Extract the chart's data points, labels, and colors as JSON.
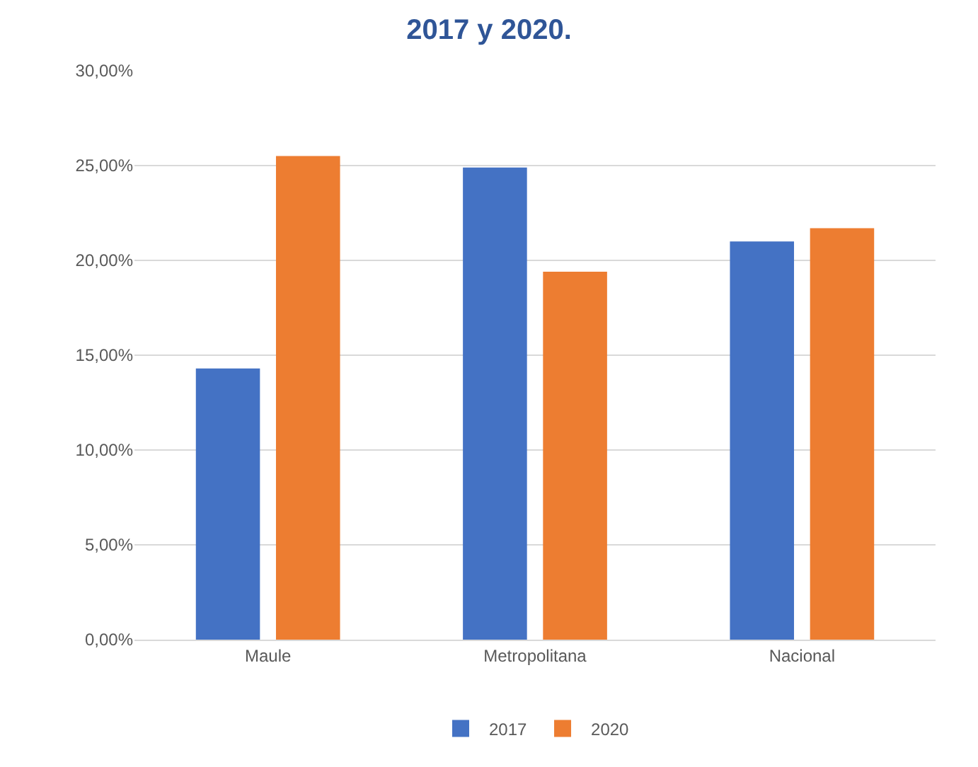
{
  "chart_data": {
    "type": "bar",
    "title": "2017 y 2020.",
    "categories": [
      "Maule",
      "Metropolitana",
      "Nacional"
    ],
    "series": [
      {
        "name": "2017",
        "color": "#4472c4",
        "values": [
          14.3,
          24.9,
          21.0
        ]
      },
      {
        "name": "2020",
        "color": "#ed7d31",
        "values": [
          25.5,
          19.4,
          21.7
        ]
      }
    ],
    "ylim": [
      0,
      30
    ],
    "yticks": [
      {
        "value": 0,
        "label": "0,00%"
      },
      {
        "value": 5,
        "label": "5,00%"
      },
      {
        "value": 10,
        "label": "10,00%"
      },
      {
        "value": 15,
        "label": "15,00%"
      },
      {
        "value": 20,
        "label": "20,00%"
      },
      {
        "value": 25,
        "label": "25,00%"
      },
      {
        "value": 30,
        "label": "30,00%"
      }
    ],
    "grid": "y",
    "legend": "bottom"
  }
}
